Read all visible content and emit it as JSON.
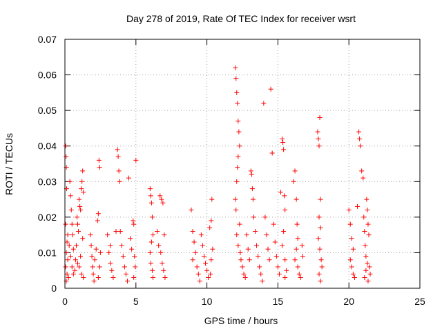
{
  "chart_data": {
    "type": "scatter",
    "title": "Day 278 of 2019, Rate Of TEC Index for receiver wsrt",
    "xlabel": "GPS time / hours",
    "ylabel": "ROTI / TECUs",
    "xlim": [
      0,
      25
    ],
    "ylim": [
      0,
      0.07
    ],
    "x_ticks": [
      0,
      5,
      10,
      15,
      20,
      25
    ],
    "x_tick_labels": [
      "0",
      "5",
      "10",
      "15",
      "20",
      "25"
    ],
    "y_ticks": [
      0,
      0.01,
      0.02,
      0.03,
      0.04,
      0.05,
      0.06,
      0.07
    ],
    "y_tick_labels": [
      "0",
      "0.01",
      "0.02",
      "0.03",
      "0.04",
      "0.05",
      "0.06",
      "0.07"
    ],
    "grid": true,
    "marker": "+",
    "color": "#ff0000",
    "series": [
      {
        "name": "ROTI",
        "points": [
          [
            0.05,
            0.04
          ],
          [
            0.08,
            0.037
          ],
          [
            0.1,
            0.034
          ],
          [
            0.12,
            0.028
          ],
          [
            0.05,
            0.018
          ],
          [
            0.15,
            0.013
          ],
          [
            0.1,
            0.01
          ],
          [
            0.2,
            0.008
          ],
          [
            0.05,
            0.006
          ],
          [
            0.15,
            0.004
          ],
          [
            0.25,
            0.003
          ],
          [
            0.1,
            0.002
          ],
          [
            0.3,
            0.012
          ],
          [
            0.2,
            0.015
          ],
          [
            0.35,
            0.03
          ],
          [
            0.4,
            0.026
          ],
          [
            0.45,
            0.022
          ],
          [
            0.5,
            0.018
          ],
          [
            0.55,
            0.015
          ],
          [
            0.6,
            0.011
          ],
          [
            0.4,
            0.009
          ],
          [
            0.5,
            0.006
          ],
          [
            0.6,
            0.004
          ],
          [
            0.7,
            0.005
          ],
          [
            0.75,
            0.008
          ],
          [
            0.8,
            0.012
          ],
          [
            0.85,
            0.02
          ],
          [
            0.9,
            0.018
          ],
          [
            0.95,
            0.016
          ],
          [
            1.0,
            0.025
          ],
          [
            1.05,
            0.023
          ],
          [
            1.1,
            0.022
          ],
          [
            1.15,
            0.028
          ],
          [
            1.2,
            0.03
          ],
          [
            1.25,
            0.033
          ],
          [
            1.3,
            0.027
          ],
          [
            1.25,
            0.014
          ],
          [
            1.1,
            0.009
          ],
          [
            1.0,
            0.006
          ],
          [
            1.15,
            0.004
          ],
          [
            1.3,
            0.003
          ],
          [
            0.9,
            0.007
          ],
          [
            1.8,
            0.015
          ],
          [
            1.85,
            0.012
          ],
          [
            1.9,
            0.009
          ],
          [
            1.95,
            0.006
          ],
          [
            2.0,
            0.004
          ],
          [
            2.05,
            0.002
          ],
          [
            2.1,
            0.008
          ],
          [
            2.2,
            0.011
          ],
          [
            2.3,
            0.019
          ],
          [
            2.35,
            0.021
          ],
          [
            2.4,
            0.036
          ],
          [
            2.45,
            0.034
          ],
          [
            2.5,
            0.01
          ],
          [
            2.45,
            0.006
          ],
          [
            2.35,
            0.003
          ],
          [
            3.0,
            0.015
          ],
          [
            3.1,
            0.01
          ],
          [
            3.2,
            0.007
          ],
          [
            3.3,
            0.005
          ],
          [
            3.4,
            0.003
          ],
          [
            3.2,
            0.012
          ],
          [
            3.6,
            0.016
          ],
          [
            3.7,
            0.039
          ],
          [
            3.75,
            0.037
          ],
          [
            3.8,
            0.033
          ],
          [
            3.85,
            0.03
          ],
          [
            3.9,
            0.016
          ],
          [
            4.0,
            0.012
          ],
          [
            4.1,
            0.009
          ],
          [
            4.2,
            0.006
          ],
          [
            4.3,
            0.004
          ],
          [
            4.4,
            0.002
          ],
          [
            4.5,
            0.031
          ],
          [
            4.6,
            0.014
          ],
          [
            4.7,
            0.011
          ],
          [
            4.8,
            0.019
          ],
          [
            4.85,
            0.018
          ],
          [
            4.9,
            0.009
          ],
          [
            5.0,
            0.036
          ],
          [
            4.95,
            0.006
          ],
          [
            4.85,
            0.003
          ],
          [
            6.0,
            0.028
          ],
          [
            6.05,
            0.026
          ],
          [
            6.1,
            0.024
          ],
          [
            6.15,
            0.02
          ],
          [
            6.2,
            0.015
          ],
          [
            6.1,
            0.013
          ],
          [
            6.0,
            0.01
          ],
          [
            6.05,
            0.007
          ],
          [
            6.15,
            0.005
          ],
          [
            6.2,
            0.003
          ],
          [
            6.5,
            0.016
          ],
          [
            6.6,
            0.012
          ],
          [
            6.7,
            0.026
          ],
          [
            6.8,
            0.025
          ],
          [
            6.75,
            0.01
          ],
          [
            6.85,
            0.007
          ],
          [
            6.9,
            0.024
          ],
          [
            7.0,
            0.015
          ],
          [
            6.95,
            0.005
          ],
          [
            7.05,
            0.003
          ],
          [
            8.9,
            0.022
          ],
          [
            9.0,
            0.016
          ],
          [
            9.1,
            0.013
          ],
          [
            9.2,
            0.01
          ],
          [
            9.0,
            0.008
          ],
          [
            9.3,
            0.006
          ],
          [
            9.4,
            0.004
          ],
          [
            9.5,
            0.002
          ],
          [
            9.6,
            0.015
          ],
          [
            9.7,
            0.012
          ],
          [
            9.8,
            0.009
          ],
          [
            9.9,
            0.007
          ],
          [
            10.0,
            0.005
          ],
          [
            10.1,
            0.003
          ],
          [
            10.2,
            0.017
          ],
          [
            10.3,
            0.019
          ],
          [
            10.35,
            0.025
          ],
          [
            10.4,
            0.011
          ],
          [
            10.3,
            0.008
          ],
          [
            10.25,
            0.004
          ],
          [
            12.0,
            0.062
          ],
          [
            12.05,
            0.059
          ],
          [
            12.1,
            0.055
          ],
          [
            12.15,
            0.052
          ],
          [
            12.2,
            0.047
          ],
          [
            12.25,
            0.044
          ],
          [
            12.3,
            0.04
          ],
          [
            12.2,
            0.037
          ],
          [
            12.15,
            0.034
          ],
          [
            12.1,
            0.03
          ],
          [
            12.0,
            0.025
          ],
          [
            12.05,
            0.022
          ],
          [
            12.3,
            0.018
          ],
          [
            12.1,
            0.015
          ],
          [
            12.2,
            0.012
          ],
          [
            12.35,
            0.01
          ],
          [
            12.4,
            0.008
          ],
          [
            12.5,
            0.006
          ],
          [
            12.6,
            0.004
          ],
          [
            12.7,
            0.003
          ],
          [
            12.8,
            0.015
          ],
          [
            12.9,
            0.011
          ],
          [
            13.0,
            0.008
          ],
          [
            13.1,
            0.033
          ],
          [
            13.15,
            0.032
          ],
          [
            13.2,
            0.028
          ],
          [
            13.25,
            0.025
          ],
          [
            13.3,
            0.02
          ],
          [
            13.4,
            0.016
          ],
          [
            13.5,
            0.012
          ],
          [
            13.6,
            0.009
          ],
          [
            13.7,
            0.006
          ],
          [
            13.8,
            0.004
          ],
          [
            13.9,
            0.002
          ],
          [
            14.0,
            0.052
          ],
          [
            14.1,
            0.02
          ],
          [
            14.2,
            0.015
          ],
          [
            14.3,
            0.011
          ],
          [
            14.4,
            0.008
          ],
          [
            14.5,
            0.056
          ],
          [
            14.6,
            0.038
          ],
          [
            14.7,
            0.018
          ],
          [
            14.8,
            0.013
          ],
          [
            14.9,
            0.009
          ],
          [
            15.0,
            0.006
          ],
          [
            15.1,
            0.004
          ],
          [
            15.2,
            0.027
          ],
          [
            15.3,
            0.042
          ],
          [
            15.35,
            0.041
          ],
          [
            15.4,
            0.039
          ],
          [
            15.45,
            0.026
          ],
          [
            15.5,
            0.022
          ],
          [
            15.4,
            0.016
          ],
          [
            15.3,
            0.012
          ],
          [
            15.5,
            0.008
          ],
          [
            15.6,
            0.005
          ],
          [
            15.5,
            0.003
          ],
          [
            16.1,
            0.03
          ],
          [
            16.2,
            0.033
          ],
          [
            16.3,
            0.025
          ],
          [
            16.35,
            0.018
          ],
          [
            16.4,
            0.014
          ],
          [
            16.3,
            0.011
          ],
          [
            16.2,
            0.008
          ],
          [
            16.4,
            0.006
          ],
          [
            16.5,
            0.004
          ],
          [
            16.6,
            0.003
          ],
          [
            16.7,
            0.012
          ],
          [
            16.75,
            0.009
          ],
          [
            17.8,
            0.044
          ],
          [
            17.85,
            0.042
          ],
          [
            17.9,
            0.04
          ],
          [
            17.95,
            0.048
          ],
          [
            18.0,
            0.025
          ],
          [
            17.9,
            0.02
          ],
          [
            18.0,
            0.017
          ],
          [
            17.85,
            0.014
          ],
          [
            17.95,
            0.011
          ],
          [
            18.05,
            0.008
          ],
          [
            18.1,
            0.006
          ],
          [
            17.9,
            0.004
          ],
          [
            18.0,
            0.002
          ],
          [
            20.0,
            0.022
          ],
          [
            20.1,
            0.018
          ],
          [
            20.2,
            0.014
          ],
          [
            20.3,
            0.011
          ],
          [
            20.1,
            0.008
          ],
          [
            20.2,
            0.006
          ],
          [
            20.3,
            0.004
          ],
          [
            20.4,
            0.003
          ],
          [
            20.6,
            0.023
          ],
          [
            20.7,
            0.044
          ],
          [
            20.75,
            0.042
          ],
          [
            20.8,
            0.04
          ],
          [
            20.9,
            0.033
          ],
          [
            21.0,
            0.031
          ],
          [
            21.05,
            0.02
          ],
          [
            21.1,
            0.016
          ],
          [
            21.15,
            0.012
          ],
          [
            21.2,
            0.009
          ],
          [
            21.25,
            0.025
          ],
          [
            21.3,
            0.022
          ],
          [
            21.35,
            0.018
          ],
          [
            21.4,
            0.015
          ],
          [
            21.3,
            0.007
          ],
          [
            21.2,
            0.005
          ],
          [
            21.1,
            0.003
          ],
          [
            21.35,
            0.002
          ],
          [
            21.45,
            0.006
          ],
          [
            21.5,
            0.004
          ]
        ]
      }
    ]
  }
}
